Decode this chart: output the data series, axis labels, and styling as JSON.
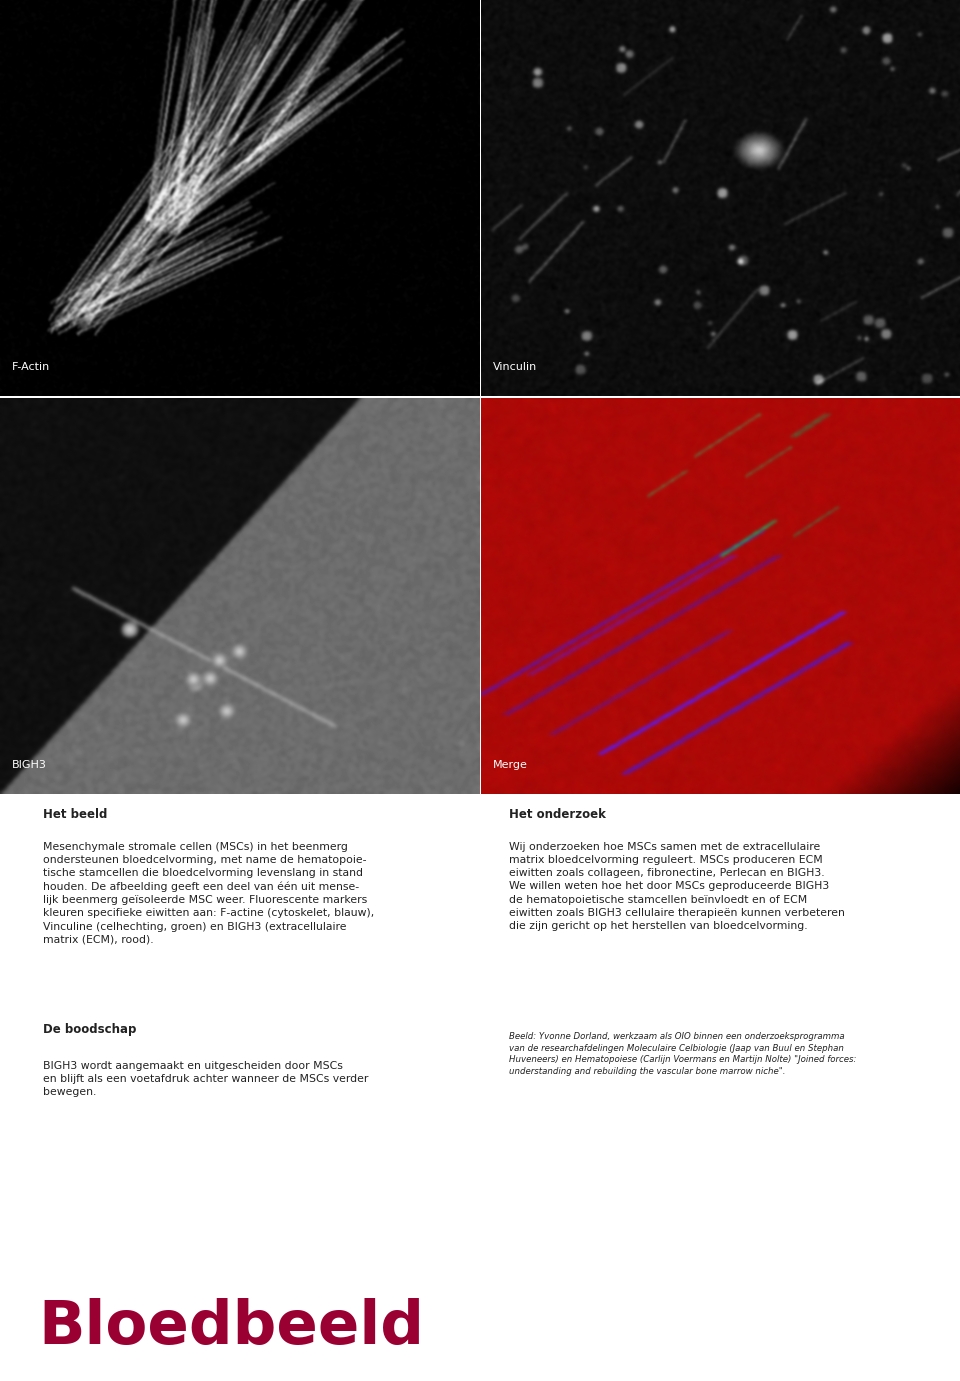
{
  "bg_color": "#ffffff",
  "panel_labels": [
    "F-Actin",
    "Vinculin",
    "BIGH3",
    "Merge"
  ],
  "label_color": "#ffffff",
  "label_fontsize": 8,
  "title_het_beeld": "Het beeld",
  "text_het_beeld": "Mesenchymale stromale cellen (MSCs) in het beenmerg ondersteunen bloedcelvorming, met name de hematopoie-\ntische stamcellen die bloedcelvorming levenslang in stand houden. De afbeelding geeft een deel van één uit mense-\nlijk beenmerg geïsoleerde MSC weer. Fluorescente markers kleuren specifieke eiwitten aan: F-actine (cytoskelet, blauw),\nVinculine (celhechting, groen) en BIGH3 (extracellulaire matrix (ECM), rood).",
  "title_de_boodschap": "De boodschap",
  "text_de_boodschap": "BIGH3 wordt aangemaakt en uitgescheiden door MSCs\nen blijft als een voetafdruk achter wanneer de MSCs verder\nbewegen.",
  "title_het_onderzoek": "Het onderzoek",
  "text_het_onderzoek": "Wij onderzoeken hoe MSCs samen met de extracellulaire\nmatrix bloedcelvorming reguleert. MSCs produceren ECM\neiwitten zoals collageen, fibronectine, Perlecan en BIGH3.\nWe willen weten hoe het door MSCs geproduceerde BIGH3\nde hematopoietische stamcellen beïnvloedt en of ECM\neiwitten zoals BIGH3 cellulaire therapieën kunnen verbeteren\ndie zijn gericht op het herstellen van bloedcelvorming.",
  "text_credit": "Beeld: Yvonne Dorland, werkzaam als OIO binnen een onderzoeksprogramma van de researchafdelingen Moleculaire Celbiologie (Jaap van Buul en Stephan\nHuveneers) en Hematopoiese (Carlijn Voermans en Martijn Nolte) \"Joined forces: understanding and rebuilding the vascular bone marrow niche\".",
  "footer_text": "Bloedbeeld",
  "footer_color": "#9b0033",
  "footer_fontsize": 44,
  "body_fontsize": 7.8,
  "heading_fontsize": 8.5,
  "credit_fontsize": 6.2,
  "text_color": "#222222"
}
